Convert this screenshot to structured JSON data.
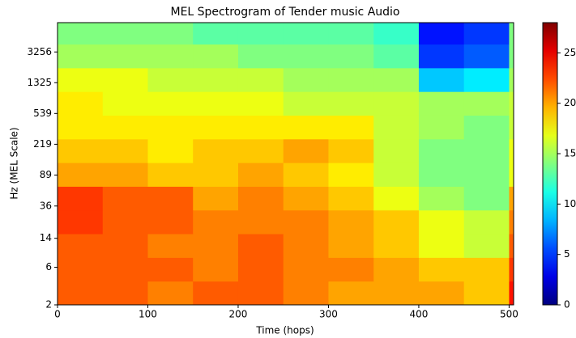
{
  "chart_data": {
    "type": "heatmap",
    "title": "MEL Spectrogram of Tender music Audio",
    "xlabel": "Time (hops)",
    "ylabel": "Hz (MEL Scale)",
    "x": [
      0,
      50,
      100,
      150,
      200,
      250,
      300,
      350,
      400,
      450,
      500,
      505
    ],
    "y": [
      2,
      4,
      8,
      16,
      32,
      64,
      128,
      256,
      512,
      1024,
      2048,
      4096,
      7674
    ],
    "z": [
      [
        22,
        22,
        21,
        22,
        22,
        21,
        20,
        20,
        20,
        19,
        24
      ],
      [
        22,
        22,
        22,
        21,
        22,
        21,
        21,
        20,
        19,
        19,
        23
      ],
      [
        22,
        22,
        21,
        21,
        22,
        21,
        20,
        19,
        17,
        16,
        22
      ],
      [
        23,
        22,
        22,
        21,
        21,
        21,
        20,
        19,
        17,
        16,
        21
      ],
      [
        23,
        22,
        22,
        20,
        21,
        20,
        19,
        17,
        15,
        14,
        20
      ],
      [
        20,
        20,
        19,
        19,
        20,
        19,
        18,
        16,
        14,
        14,
        17
      ],
      [
        19,
        19,
        18,
        19,
        19,
        20,
        19,
        16,
        14,
        14,
        17
      ],
      [
        18,
        18,
        18,
        18,
        18,
        18,
        18,
        16,
        15,
        14,
        16
      ],
      [
        18,
        17,
        17,
        17,
        17,
        16,
        16,
        16,
        15,
        15,
        16
      ],
      [
        17,
        17,
        16,
        16,
        16,
        15,
        15,
        15,
        9,
        10,
        15
      ],
      [
        15,
        15,
        15,
        15,
        14,
        14,
        14,
        13,
        5,
        6,
        14
      ],
      [
        14,
        14,
        14,
        13,
        13,
        13,
        13,
        12,
        4,
        5,
        14
      ]
    ],
    "colormap": "jet",
    "xlim": [
      0,
      505
    ],
    "xticks": [
      0,
      100,
      200,
      300,
      400,
      500
    ],
    "ylim": [
      2,
      7674
    ],
    "yscale": "log",
    "yticks": [
      2,
      6,
      14,
      36,
      89,
      219,
      539,
      1325,
      3256
    ],
    "clim": [
      0,
      28
    ],
    "cticks": [
      0,
      5,
      10,
      15,
      20,
      25
    ]
  }
}
